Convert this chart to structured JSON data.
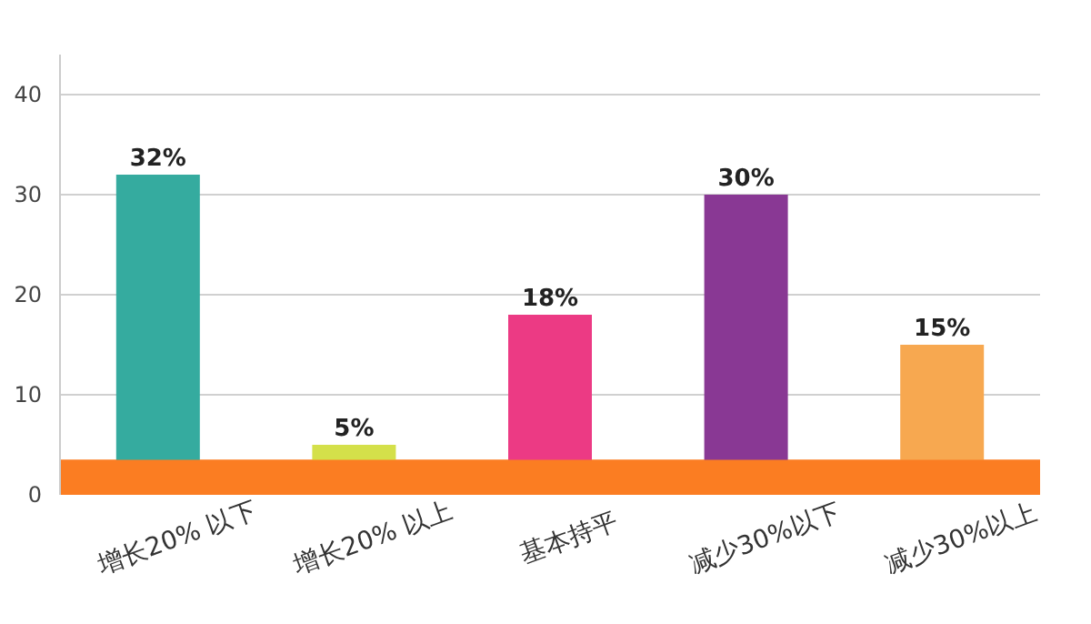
{
  "chart_data": {
    "type": "bar",
    "categories": [
      "增长20% 以下",
      "增长20% 以上",
      "基本持平",
      "减少30%以下",
      "减少30%以上"
    ],
    "values": [
      32,
      5,
      18,
      30,
      15
    ],
    "colors": [
      "#35ab9f",
      "#d4e04a",
      "#ec3a84",
      "#893894",
      "#f7a850"
    ],
    "value_labels": [
      "32%",
      "5%",
      "18%",
      "30%",
      "15%"
    ],
    "ylim": [
      0,
      44
    ],
    "yticks": [
      0,
      10,
      20,
      30,
      40
    ],
    "grid": "y",
    "bands": [
      {
        "axis": "y",
        "from": 0,
        "to": 3.5,
        "color": "#fb7d22"
      }
    ]
  }
}
